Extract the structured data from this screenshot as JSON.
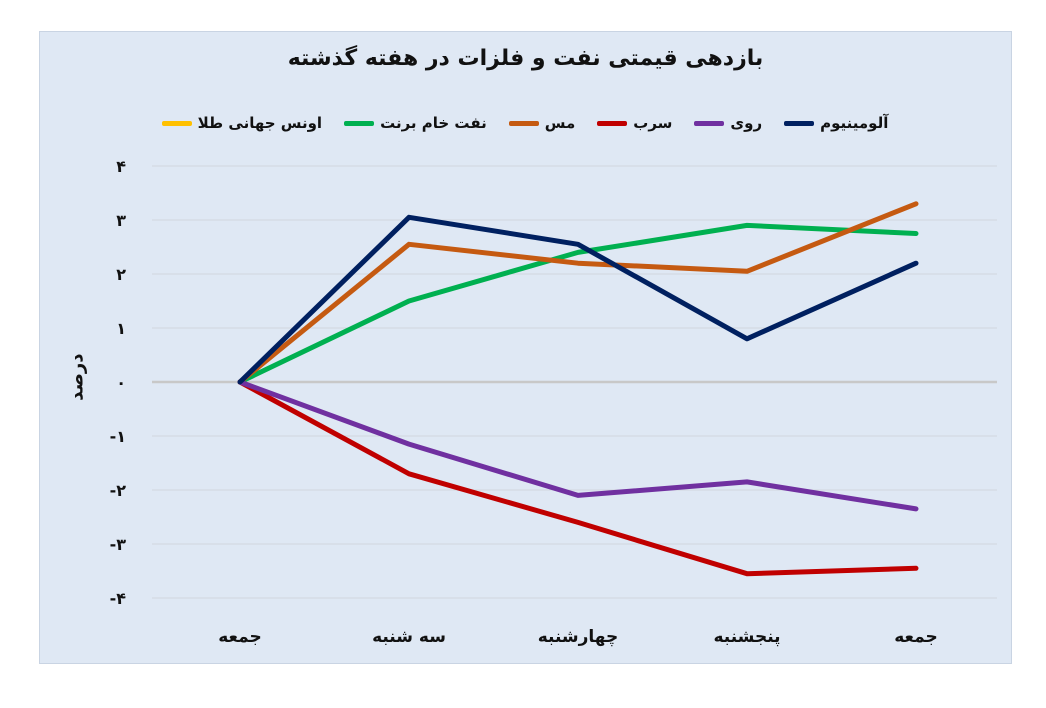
{
  "chart_data": {
    "type": "line",
    "title": "بازدهی قیمتی نفت و فلزات در هفته گذشته",
    "ylabel": "درصد",
    "xlabel": "",
    "ylim": [
      -4,
      4
    ],
    "yticks": [
      4,
      3,
      2,
      1,
      0,
      -1,
      -2,
      -3,
      -4
    ],
    "ytick_labels": [
      "۴",
      "۳",
      "۲",
      "۱",
      "۰",
      "-۱",
      "-۲",
      "-۳",
      "-۴"
    ],
    "categories": [
      "جمعه",
      "سه شنبه",
      "چهارشنبه",
      "پنجشنبه",
      "جمعه"
    ],
    "grid": true,
    "legend_position": "top",
    "series": [
      {
        "name": "اونس جهانی طلا",
        "color": "#ffc000",
        "values": [
          0,
          null,
          null,
          null,
          null
        ]
      },
      {
        "name": "نفت خام برنت",
        "color": "#00b050",
        "values": [
          0,
          1.5,
          2.4,
          2.9,
          2.75
        ]
      },
      {
        "name": "مس",
        "color": "#c55a11",
        "values": [
          0,
          2.55,
          2.2,
          2.05,
          3.3
        ]
      },
      {
        "name": "سرب",
        "color": "#c00000",
        "values": [
          0,
          -1.7,
          -2.6,
          -3.55,
          -3.45
        ]
      },
      {
        "name": "روی",
        "color": "#7030a0",
        "values": [
          0,
          -1.15,
          -2.1,
          -1.85,
          -2.35
        ]
      },
      {
        "name": "آلومینیوم",
        "color": "#002060",
        "values": [
          0,
          3.05,
          2.55,
          0.8,
          2.2
        ]
      }
    ]
  }
}
